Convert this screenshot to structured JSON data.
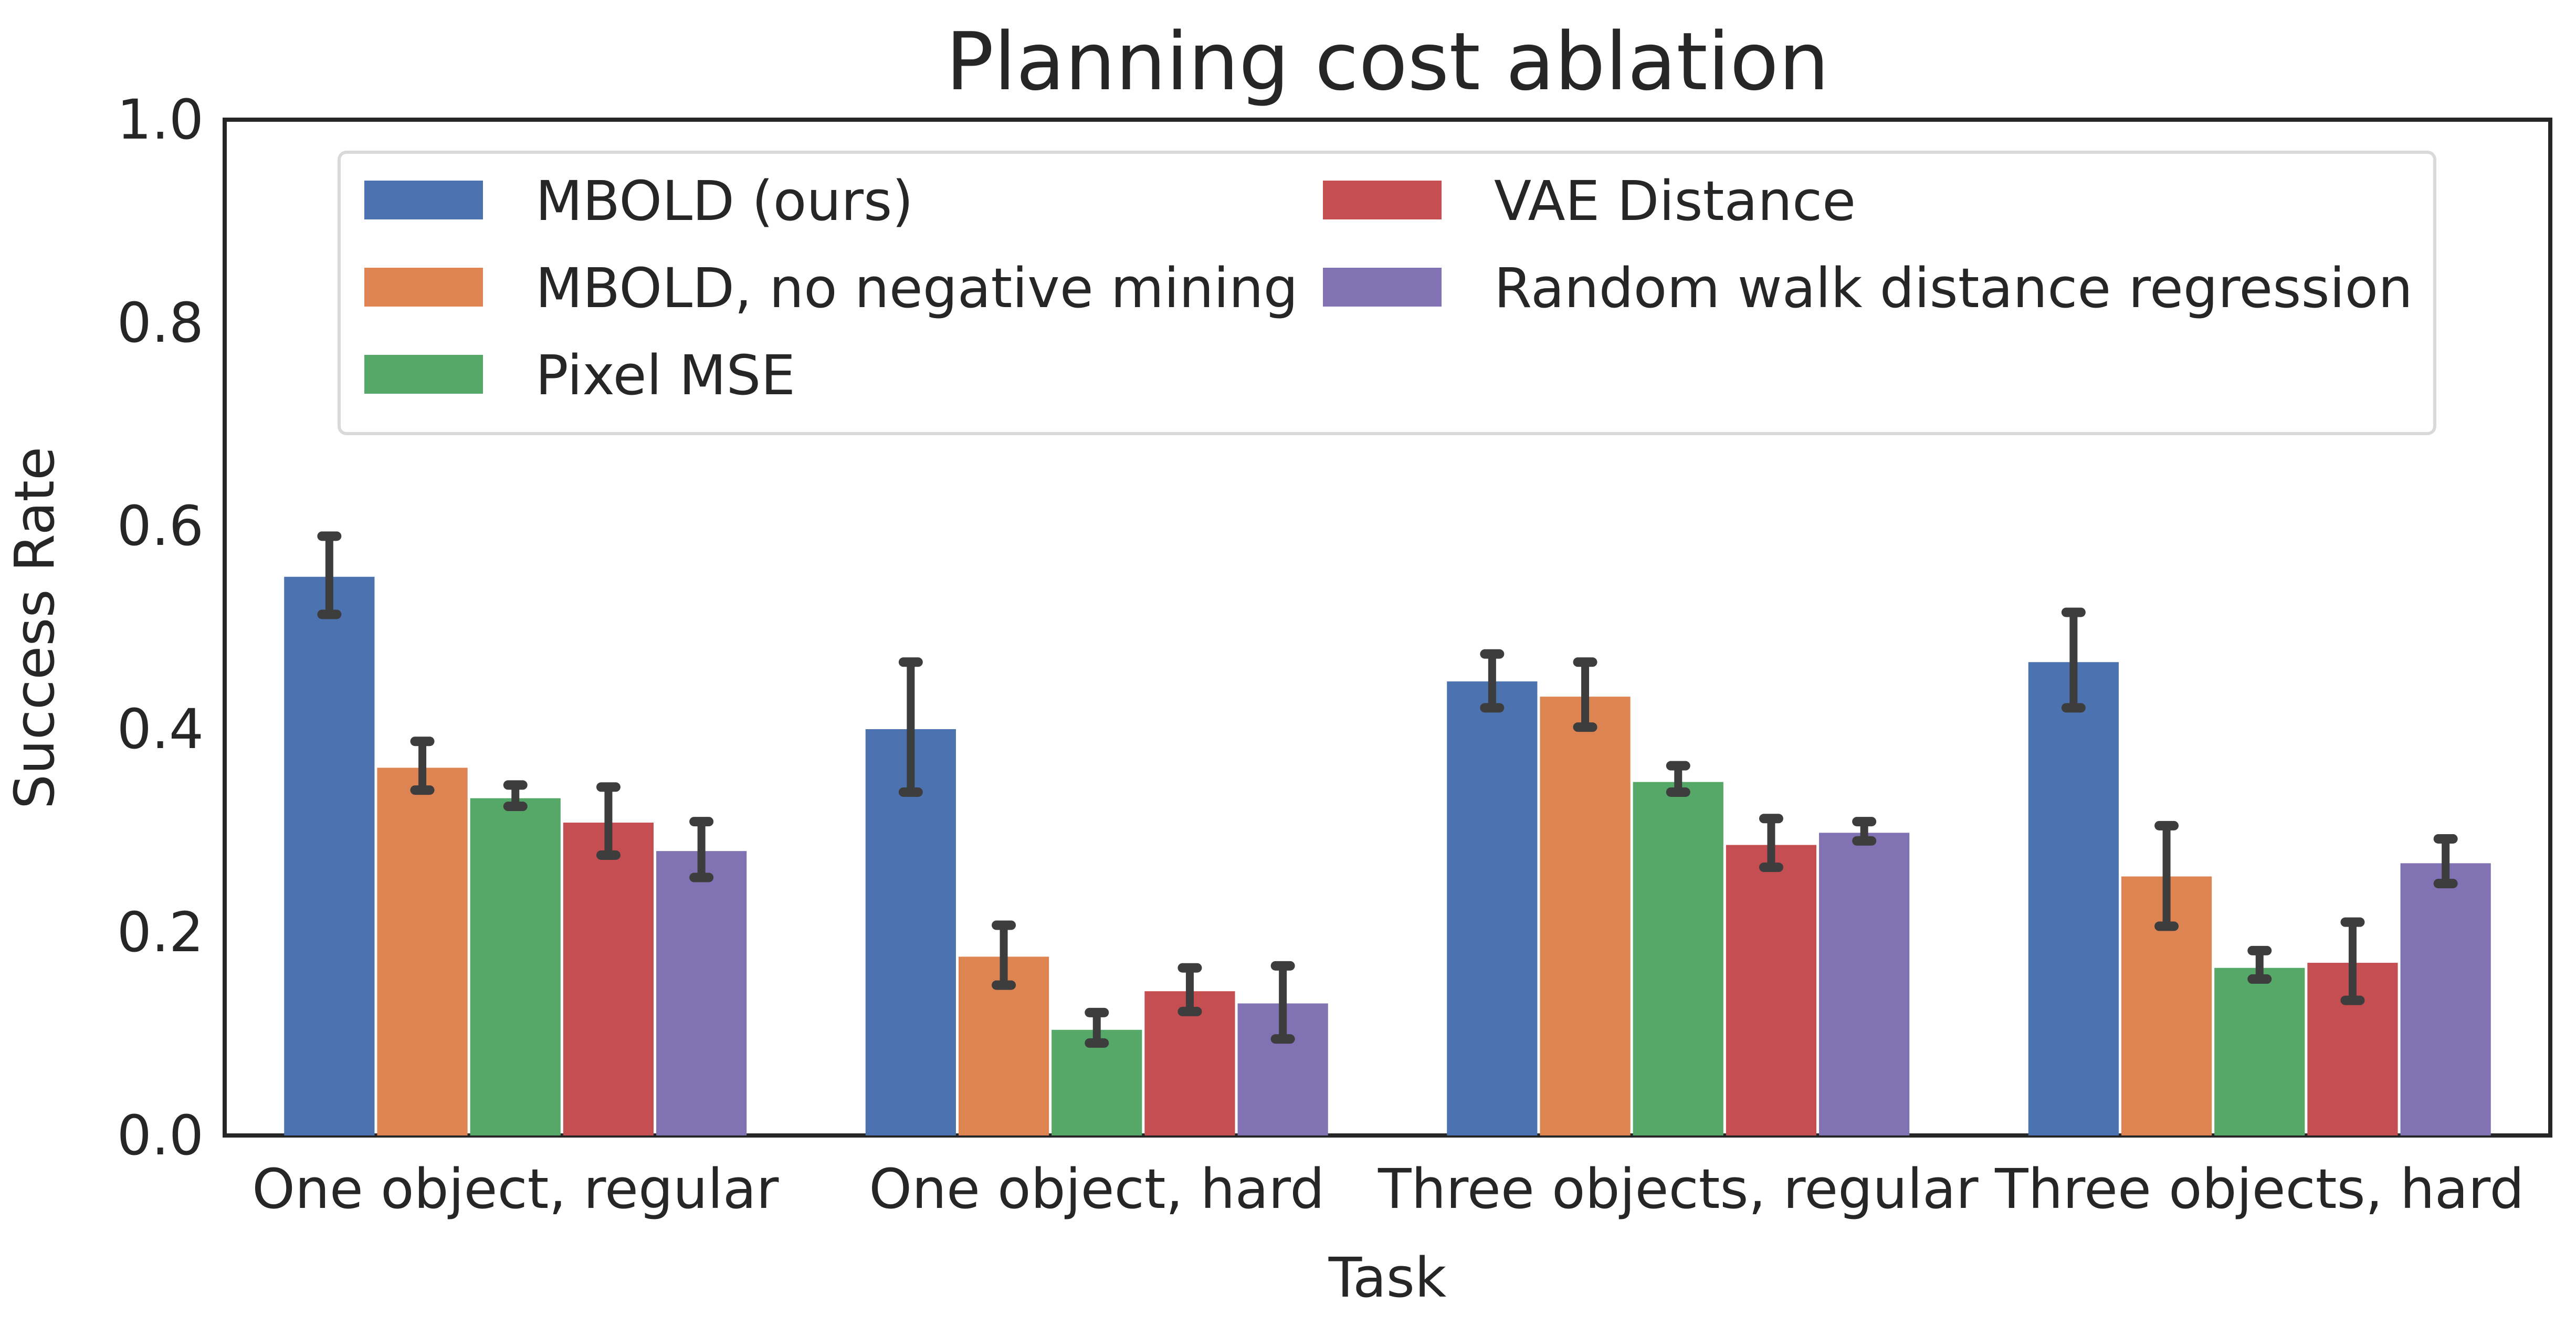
{
  "chart_data": {
    "type": "bar",
    "title": "Planning cost ablation",
    "xlabel": "Task",
    "ylabel": "Success Rate",
    "ylim": [
      0,
      1.0
    ],
    "yticks": [
      "0.0",
      "0.2",
      "0.4",
      "0.6",
      "0.8",
      "1.0"
    ],
    "grid": false,
    "legend_position": "top",
    "categories": [
      "One object, regular",
      "One object, hard",
      "Three objects, regular",
      "Three objects, hard"
    ],
    "series": [
      {
        "name": "MBOLD (ours)",
        "color": "#4c72b0",
        "values": [
          0.55,
          0.4,
          0.447,
          0.466
        ],
        "error_low": [
          0.513,
          0.338,
          0.421,
          0.421
        ],
        "error_high": [
          0.59,
          0.466,
          0.474,
          0.515
        ]
      },
      {
        "name": "MBOLD, no negative mining",
        "color": "#dd8452",
        "values": [
          0.362,
          0.176,
          0.432,
          0.255
        ],
        "error_low": [
          0.34,
          0.148,
          0.402,
          0.206
        ],
        "error_high": [
          0.388,
          0.207,
          0.466,
          0.305
        ]
      },
      {
        "name": "Pixel MSE",
        "color": "#55a868",
        "values": [
          0.332,
          0.104,
          0.348,
          0.165
        ],
        "error_low": [
          0.324,
          0.091,
          0.338,
          0.154
        ],
        "error_high": [
          0.345,
          0.121,
          0.364,
          0.182
        ]
      },
      {
        "name": "VAE Distance",
        "color": "#c44e52",
        "values": [
          0.308,
          0.142,
          0.286,
          0.17
        ],
        "error_low": [
          0.276,
          0.122,
          0.264,
          0.133
        ],
        "error_high": [
          0.343,
          0.165,
          0.312,
          0.21
        ]
      },
      {
        "name": "Random walk distance regression",
        "color": "#8172b3",
        "values": [
          0.28,
          0.13,
          0.298,
          0.268
        ],
        "error_low": [
          0.254,
          0.095,
          0.29,
          0.248
        ],
        "error_high": [
          0.309,
          0.167,
          0.309,
          0.292
        ]
      }
    ]
  }
}
